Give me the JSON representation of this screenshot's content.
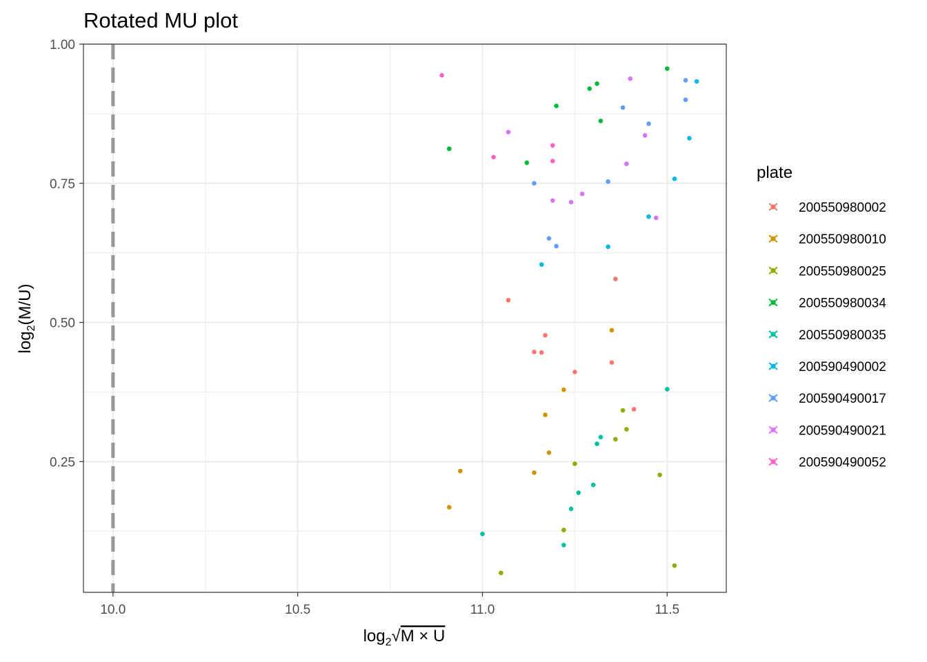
{
  "chart_data": {
    "type": "scatter",
    "title": "Rotated MU plot",
    "xlabel_parts": {
      "log": "log",
      "sub": "2",
      "radical": "√",
      "radicand": "M × U"
    },
    "ylabel_parts": {
      "log": "log",
      "sub": "2",
      "rest": "(M/U)"
    },
    "xlim": [
      9.92,
      11.66
    ],
    "ylim": [
      0.015,
      1.0
    ],
    "x_ticks": [
      10.0,
      10.5,
      11.0,
      11.5
    ],
    "x_tick_labels": [
      "10.0",
      "10.5",
      "11.0",
      "11.5"
    ],
    "y_ticks": [
      0.25,
      0.5,
      0.75,
      1.0
    ],
    "y_tick_labels": [
      "0.25",
      "0.50",
      "0.75",
      "1.00"
    ],
    "grid": true,
    "vline": {
      "x": 10.0,
      "style": "dashed",
      "color": "#999999"
    },
    "legend": {
      "title": "plate",
      "position": "right"
    },
    "series": [
      {
        "name": "200550980002",
        "color": "#F8766D",
        "points": [
          [
            11.07,
            0.54
          ],
          [
            11.36,
            0.578
          ],
          [
            11.17,
            0.477
          ],
          [
            11.14,
            0.447
          ],
          [
            11.16,
            0.446
          ],
          [
            11.25,
            0.411
          ],
          [
            11.35,
            0.428
          ],
          [
            11.41,
            0.344
          ]
        ]
      },
      {
        "name": "200550980010",
        "color": "#D39200",
        "points": [
          [
            11.35,
            0.486
          ],
          [
            11.22,
            0.379
          ],
          [
            11.17,
            0.334
          ],
          [
            11.18,
            0.266
          ],
          [
            10.94,
            0.233
          ],
          [
            11.14,
            0.23
          ],
          [
            10.91,
            0.168
          ]
        ]
      },
      {
        "name": "200550980025",
        "color": "#93AA00",
        "points": [
          [
            11.38,
            0.342
          ],
          [
            11.39,
            0.308
          ],
          [
            11.36,
            0.29
          ],
          [
            11.25,
            0.246
          ],
          [
            11.48,
            0.226
          ],
          [
            11.22,
            0.127
          ],
          [
            11.05,
            0.05
          ],
          [
            11.52,
            0.063
          ]
        ]
      },
      {
        "name": "200550980034",
        "color": "#00BA38",
        "points": [
          [
            11.5,
            0.956
          ],
          [
            11.31,
            0.929
          ],
          [
            11.29,
            0.92
          ],
          [
            11.2,
            0.889
          ],
          [
            11.32,
            0.862
          ],
          [
            10.91,
            0.812
          ],
          [
            11.12,
            0.787
          ]
        ]
      },
      {
        "name": "200550980035",
        "color": "#00C19F",
        "points": [
          [
            11.5,
            0.38
          ],
          [
            11.32,
            0.294
          ],
          [
            11.31,
            0.282
          ],
          [
            11.3,
            0.208
          ],
          [
            11.26,
            0.194
          ],
          [
            11.24,
            0.165
          ],
          [
            11.0,
            0.12
          ],
          [
            11.22,
            0.1
          ]
        ]
      },
      {
        "name": "200590490002",
        "color": "#00B9E3",
        "points": [
          [
            11.58,
            0.933
          ],
          [
            11.56,
            0.831
          ],
          [
            11.52,
            0.758
          ],
          [
            11.45,
            0.69
          ],
          [
            11.34,
            0.636
          ],
          [
            11.16,
            0.604
          ]
        ]
      },
      {
        "name": "200590490017",
        "color": "#619CFF",
        "points": [
          [
            11.55,
            0.935
          ],
          [
            11.55,
            0.9
          ],
          [
            11.38,
            0.886
          ],
          [
            11.45,
            0.857
          ],
          [
            11.34,
            0.753
          ],
          [
            11.14,
            0.75
          ],
          [
            11.18,
            0.651
          ],
          [
            11.2,
            0.637
          ]
        ]
      },
      {
        "name": "200590490021",
        "color": "#DB72FB",
        "points": [
          [
            11.4,
            0.938
          ],
          [
            11.07,
            0.842
          ],
          [
            11.44,
            0.836
          ],
          [
            11.39,
            0.785
          ],
          [
            11.27,
            0.731
          ],
          [
            11.19,
            0.719
          ],
          [
            11.24,
            0.716
          ],
          [
            11.47,
            0.688
          ]
        ]
      },
      {
        "name": "200590490052",
        "color": "#FF61C3",
        "points": [
          [
            10.89,
            0.944
          ],
          [
            11.19,
            0.818
          ],
          [
            11.03,
            0.797
          ],
          [
            11.19,
            0.79
          ]
        ]
      }
    ]
  }
}
